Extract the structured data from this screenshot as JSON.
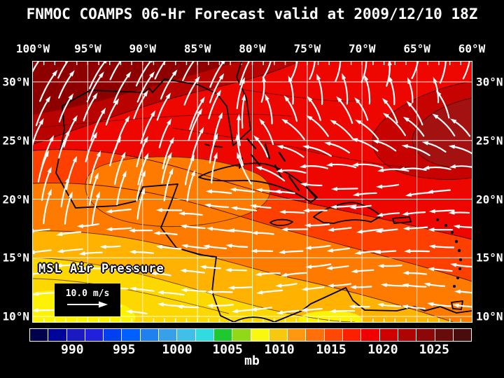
{
  "title": "FNMOC COAMPS 06-Hr Forecast valid at 2009/12/10 18Z",
  "axes": {
    "lon_labels": [
      "100°W",
      "95°W",
      "90°W",
      "85°W",
      "80°W",
      "75°W",
      "70°W",
      "65°W",
      "60°W"
    ],
    "lat_labels": [
      "30°N",
      "25°N",
      "20°N",
      "15°N",
      "10°N"
    ]
  },
  "legend": {
    "field_label": "MSL Air Pressure",
    "wind_scale_label": "10.0 m/s"
  },
  "colorbar": {
    "unit": "mb",
    "tick_labels": [
      "990",
      "995",
      "1000",
      "1005",
      "1010",
      "1015",
      "1020",
      "1025"
    ],
    "segment_colors": [
      "#00004d",
      "#000599",
      "#1a1ac0",
      "#2020dd",
      "#0040f0",
      "#0060ff",
      "#2080f0",
      "#38a0e8",
      "#40c0e8",
      "#30dce0",
      "#20c830",
      "#90d818",
      "#f8f810",
      "#f8c810",
      "#ff9810",
      "#ff7008",
      "#ff4804",
      "#fc2000",
      "#f00000",
      "#d00000",
      "#b00404",
      "#8c0808",
      "#680b0b",
      "#480c0c"
    ]
  },
  "colors": {
    "background": "#000000",
    "text": "#ffffff",
    "grid": "#ffffff",
    "coastline": "#000000",
    "wind_arrows": "#ffffff"
  }
}
